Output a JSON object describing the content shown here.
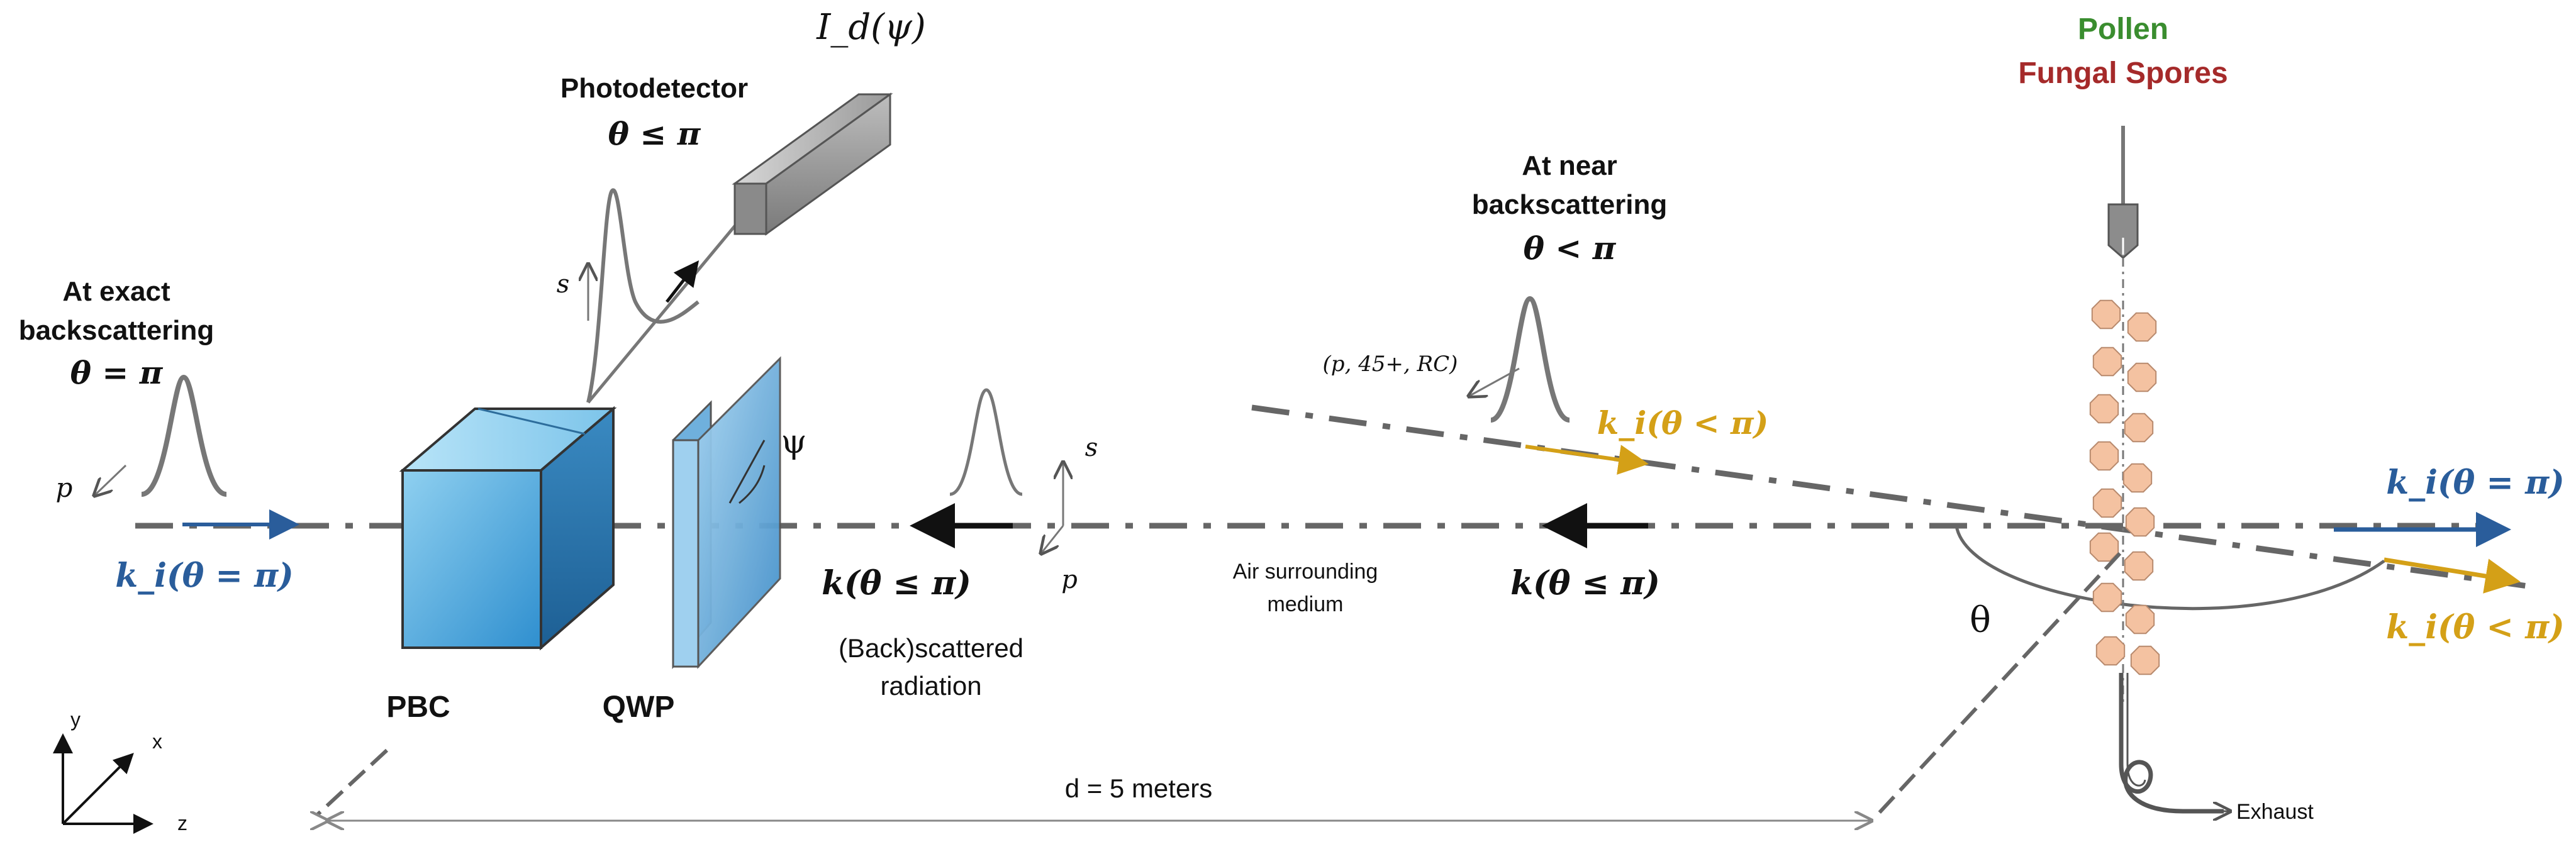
{
  "colors": {
    "blue": "#2a5d9b",
    "gold": "#d4a017",
    "green": "#3a8d2f",
    "darkred": "#a52a2a",
    "grey": "#555555",
    "particle": "#f4c2a1"
  },
  "labels": {
    "photodetector": "Photodetector",
    "photodetector_theta": "θ ≤ π",
    "id_psi": "I_d(ψ)",
    "exact_1": "At exact",
    "exact_2": "backscattering",
    "exact_theta": "θ = π",
    "near_1": "At near",
    "near_2": "backscattering",
    "near_theta": "θ < π",
    "pollen": "Pollen",
    "fungal": "Fungal Spores",
    "pbc": "PBC",
    "qwp": "QWP",
    "psi": "ψ",
    "s_top": "s",
    "s_mid": "s",
    "p_left": "p",
    "p_mid": "p",
    "prc": "(p, 45+, RC)",
    "ki_left": "k_i(θ = π)",
    "ki_near": "k_i(θ < π)",
    "ki_right_top": "k_i(θ = π)",
    "ki_right_bot": "k_i(θ < π)",
    "k_left": "k(θ ≤ π)",
    "k_right": "k(θ ≤ π)",
    "back_1": "(Back)scattered",
    "back_2": "radiation",
    "air_1": "Air surrounding",
    "air_2": "medium",
    "theta": "θ",
    "distance": "d = 5 meters",
    "exhaust": "Exhaust",
    "axis_x": "x",
    "axis_y": "y",
    "axis_z": "z"
  }
}
